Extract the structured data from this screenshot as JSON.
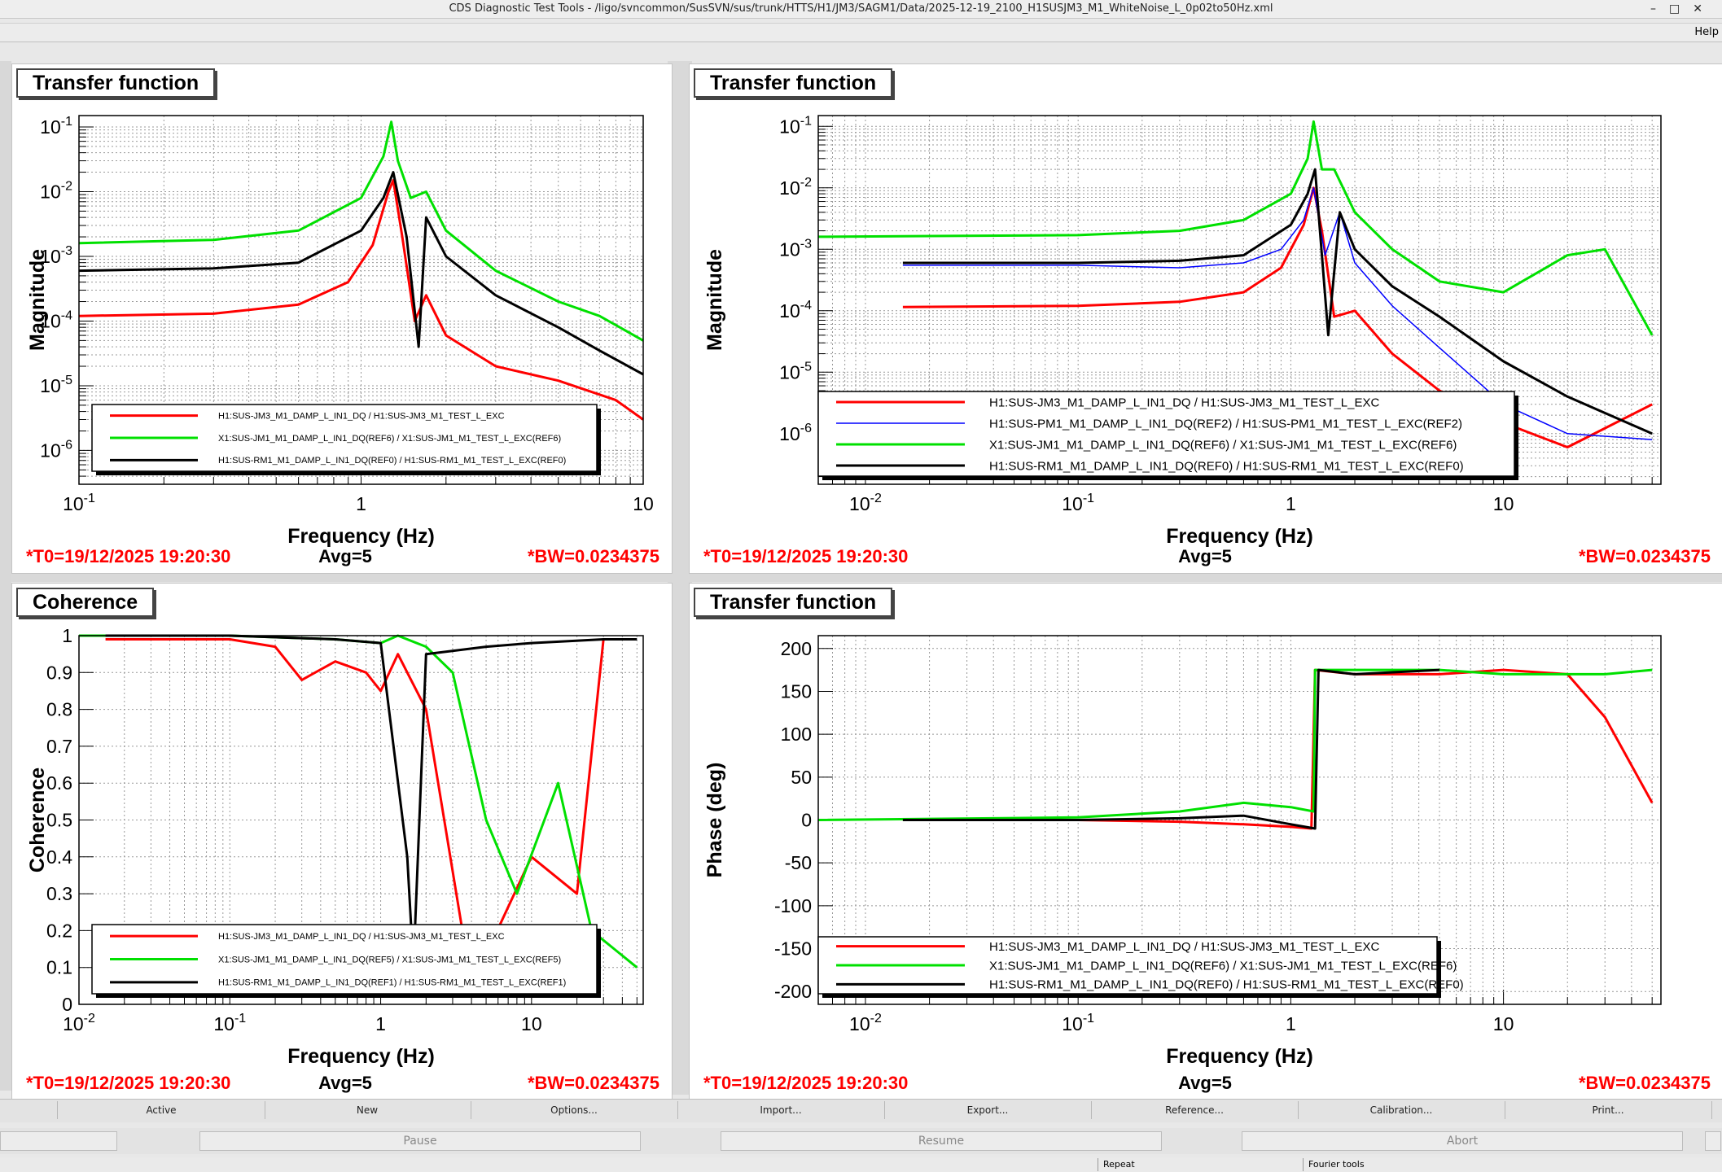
{
  "window": {
    "title": "CDS Diagnostic Test Tools - /ligo/svncommon/SusSVN/sus/trunk/HTTS/H1/JM3/SAGM1/Data/2025-12-19_2100_H1SUSJM3_M1_WhiteNoise_L_0p02to50Hz.xml"
  },
  "menu": {
    "help": "Help"
  },
  "panels": [
    {
      "title": "Transfer function",
      "ylabel": "Magnitude",
      "xlabel": "Frequency (Hz)",
      "t0": "*T0=19/12/2025 19:20:30",
      "avg": "Avg=5",
      "bw": "*BW=0.0234375",
      "xticks": [
        "10",
        "-1",
        "1",
        "10"
      ],
      "yticks": [
        "10",
        "10",
        "10",
        "10",
        "10",
        "10"
      ],
      "legend": [
        {
          "label": "H1:SUS-JM3_M1_DAMP_L_IN1_DQ / H1:SUS-JM3_M1_TEST_L_EXC",
          "color": "#ff0000"
        },
        {
          "label": "X1:SUS-JM1_M1_DAMP_L_IN1_DQ(REF6) / X1:SUS-JM1_M1_TEST_L_EXC(REF6)",
          "color": "#00e000"
        },
        {
          "label": "H1:SUS-RM1_M1_DAMP_L_IN1_DQ(REF0) / H1:SUS-RM1_M1_TEST_L_EXC(REF0)",
          "color": "#000000"
        }
      ]
    },
    {
      "title": "Transfer function",
      "ylabel": "Magnitude",
      "xlabel": "Frequency (Hz)",
      "t0": "*T0=19/12/2025 19:20:30",
      "avg": "Avg=5",
      "bw": "*BW=0.0234375",
      "legend": [
        {
          "label": "H1:SUS-JM3_M1_DAMP_L_IN1_DQ / H1:SUS-JM3_M1_TEST_L_EXC",
          "color": "#ff0000"
        },
        {
          "label": "H1:SUS-PM1_M1_DAMP_L_IN1_DQ(REF2) / H1:SUS-PM1_M1_TEST_L_EXC(REF2)",
          "color": "#0000ff"
        },
        {
          "label": "X1:SUS-JM1_M1_DAMP_L_IN1_DQ(REF6) / X1:SUS-JM1_M1_TEST_L_EXC(REF6)",
          "color": "#00e000"
        },
        {
          "label": "H1:SUS-RM1_M1_DAMP_L_IN1_DQ(REF0) / H1:SUS-RM1_M1_TEST_L_EXC(REF0)",
          "color": "#000000"
        }
      ]
    },
    {
      "title": "Coherence",
      "ylabel": "Coherence",
      "xlabel": "Frequency (Hz)",
      "t0": "*T0=19/12/2025 19:20:30",
      "avg": "Avg=5",
      "bw": "*BW=0.0234375",
      "legend": [
        {
          "label": "H1:SUS-JM3_M1_DAMP_L_IN1_DQ / H1:SUS-JM3_M1_TEST_L_EXC",
          "color": "#ff0000"
        },
        {
          "label": "X1:SUS-JM1_M1_DAMP_L_IN1_DQ(REF5) / X1:SUS-JM1_M1_TEST_L_EXC(REF5)",
          "color": "#00e000"
        },
        {
          "label": "H1:SUS-RM1_M1_DAMP_L_IN1_DQ(REF1) / H1:SUS-RM1_M1_TEST_L_EXC(REF1)",
          "color": "#000000"
        }
      ]
    },
    {
      "title": "Transfer function",
      "ylabel": "Phase (deg)",
      "xlabel": "Frequency (Hz)",
      "t0": "*T0=19/12/2025 19:20:30",
      "avg": "Avg=5",
      "bw": "*BW=0.0234375",
      "legend": [
        {
          "label": "H1:SUS-JM3_M1_DAMP_L_IN1_DQ / H1:SUS-JM3_M1_TEST_L_EXC",
          "color": "#ff0000"
        },
        {
          "label": "X1:SUS-JM1_M1_DAMP_L_IN1_DQ(REF6) / X1:SUS-JM1_M1_TEST_L_EXC(REF6)",
          "color": "#00e000"
        },
        {
          "label": "H1:SUS-RM1_M1_DAMP_L_IN1_DQ(REF0) / H1:SUS-RM1_M1_TEST_L_EXC(REF0)",
          "color": "#000000"
        }
      ]
    }
  ],
  "chart_data": [
    {
      "type": "line",
      "title": "Transfer function",
      "xlabel": "Frequency (Hz)",
      "ylabel": "Magnitude",
      "xscale": "log",
      "yscale": "log",
      "xlim": [
        0.1,
        10
      ],
      "ylim": [
        3e-07,
        0.15
      ],
      "xticks": [
        0.1,
        1,
        10
      ],
      "yticks": [
        1e-06,
        1e-05,
        0.0001,
        0.001,
        0.01,
        0.1
      ],
      "grid": true,
      "legend": "bottom-left",
      "series": [
        {
          "name": "H1:SUS-JM3_M1_DAMP_L_IN1_DQ / H1:SUS-JM3_M1_TEST_L_EXC",
          "color": "#ff0000",
          "x": [
            0.1,
            0.3,
            0.6,
            0.9,
            1.1,
            1.25,
            1.3,
            1.4,
            1.55,
            1.7,
            2.0,
            3.0,
            5.0,
            8.0,
            10.0
          ],
          "y": [
            0.00012,
            0.00013,
            0.00018,
            0.0004,
            0.0015,
            0.01,
            0.015,
            0.002,
            0.0001,
            0.00025,
            6e-05,
            2e-05,
            1.2e-05,
            6e-06,
            3e-06
          ]
        },
        {
          "name": "X1:SUS-JM1_M1_DAMP_L_IN1_DQ(REF6) / X1:SUS-JM1_M1_TEST_L_EXC(REF6)",
          "color": "#00e000",
          "x": [
            0.1,
            0.3,
            0.6,
            1.0,
            1.2,
            1.28,
            1.35,
            1.5,
            1.7,
            2.0,
            3.0,
            5.0,
            7.0,
            10.0
          ],
          "y": [
            0.0016,
            0.0018,
            0.0025,
            0.008,
            0.035,
            0.12,
            0.03,
            0.008,
            0.01,
            0.0025,
            0.0006,
            0.0002,
            0.00012,
            5e-05
          ]
        },
        {
          "name": "H1:SUS-RM1_M1_DAMP_L_IN1_DQ(REF0) / H1:SUS-RM1_M1_TEST_L_EXC(REF0)",
          "color": "#000000",
          "x": [
            0.1,
            0.3,
            0.6,
            1.0,
            1.2,
            1.3,
            1.45,
            1.6,
            1.7,
            2.0,
            3.0,
            5.0,
            7.0,
            10.0
          ],
          "y": [
            0.0006,
            0.00065,
            0.0008,
            0.0025,
            0.008,
            0.02,
            0.002,
            4e-05,
            0.004,
            0.001,
            0.00025,
            8e-05,
            3.5e-05,
            1.5e-05
          ]
        }
      ]
    },
    {
      "type": "line",
      "title": "Transfer function",
      "xlabel": "Frequency (Hz)",
      "ylabel": "Magnitude",
      "xscale": "log",
      "yscale": "log",
      "xlim": [
        0.006,
        55
      ],
      "ylim": [
        1.5e-07,
        0.15
      ],
      "xticks": [
        0.01,
        0.1,
        1,
        10
      ],
      "yticks": [
        1e-06,
        1e-05,
        0.0001,
        0.001,
        0.01,
        0.1
      ],
      "grid": true,
      "legend": "bottom-center",
      "series": [
        {
          "name": "H1:SUS-JM3_M1_DAMP_L_IN1_DQ / H1:SUS-JM3_M1_TEST_L_EXC",
          "color": "#ff0000",
          "x": [
            0.015,
            0.1,
            0.3,
            0.6,
            0.9,
            1.15,
            1.28,
            1.4,
            1.6,
            2.0,
            3.0,
            5.0,
            10.0,
            20.0,
            50.0
          ],
          "y": [
            0.000115,
            0.00012,
            0.00014,
            0.0002,
            0.0005,
            0.0025,
            0.01,
            0.002,
            8e-05,
            0.0001,
            2e-05,
            5e-06,
            1.5e-06,
            6e-07,
            3e-06
          ]
        },
        {
          "name": "H1:SUS-PM1_M1_DAMP_L_IN1_DQ(REF2) / H1:SUS-PM1_M1_TEST_L_EXC(REF2)",
          "color": "#0000ff",
          "x": [
            0.015,
            0.1,
            0.3,
            0.6,
            0.9,
            1.15,
            1.28,
            1.45,
            1.7,
            2.0,
            3.0,
            5.0,
            10.0,
            20.0,
            50.0
          ],
          "y": [
            0.00055,
            0.00055,
            0.0005,
            0.0006,
            0.001,
            0.003,
            0.01,
            0.0008,
            0.004,
            0.0006,
            0.00012,
            2.5e-05,
            3e-06,
            1e-06,
            8e-07
          ]
        },
        {
          "name": "X1:SUS-JM1_M1_DAMP_L_IN1_DQ(REF6) / X1:SUS-JM1_M1_TEST_L_EXC(REF6)",
          "color": "#00e000",
          "x": [
            0.006,
            0.1,
            0.3,
            0.6,
            1.0,
            1.2,
            1.28,
            1.4,
            1.6,
            2.0,
            3.0,
            5.0,
            10.0,
            20.0,
            30.0,
            50.0
          ],
          "y": [
            0.0016,
            0.0017,
            0.002,
            0.003,
            0.008,
            0.03,
            0.12,
            0.02,
            0.02,
            0.004,
            0.001,
            0.0003,
            0.0002,
            0.0008,
            0.001,
            4e-05
          ]
        },
        {
          "name": "H1:SUS-RM1_M1_DAMP_L_IN1_DQ(REF0) / H1:SUS-RM1_M1_TEST_L_EXC(REF0)",
          "color": "#000000",
          "x": [
            0.015,
            0.1,
            0.3,
            0.6,
            1.0,
            1.2,
            1.3,
            1.5,
            1.7,
            2.0,
            3.0,
            5.0,
            10.0,
            20.0,
            50.0
          ],
          "y": [
            0.0006,
            0.0006,
            0.00065,
            0.0008,
            0.0025,
            0.008,
            0.02,
            4e-05,
            0.004,
            0.001,
            0.00025,
            8e-05,
            1.5e-05,
            4e-06,
            1e-06
          ]
        }
      ]
    },
    {
      "type": "line",
      "title": "Coherence",
      "xlabel": "Frequency (Hz)",
      "ylabel": "Coherence",
      "xscale": "log",
      "yscale": "linear",
      "xlim": [
        0.01,
        55
      ],
      "ylim": [
        0,
        1
      ],
      "xticks": [
        0.01,
        0.1,
        1,
        10
      ],
      "yticks": [
        0,
        0.1,
        0.2,
        0.3,
        0.4,
        0.5,
        0.6,
        0.7,
        0.8,
        0.9,
        1
      ],
      "grid": true,
      "legend": "bottom-left",
      "series": [
        {
          "name": "H1:SUS-JM3_M1_DAMP_L_IN1_DQ / H1:SUS-JM3_M1_TEST_L_EXC",
          "color": "#ff0000",
          "x": [
            0.015,
            0.1,
            0.2,
            0.3,
            0.5,
            0.8,
            1.0,
            1.3,
            2.0,
            4.0,
            10.0,
            20.0,
            30.0
          ],
          "y": [
            0.99,
            0.99,
            0.97,
            0.88,
            0.93,
            0.9,
            0.85,
            0.95,
            0.8,
            0.05,
            0.4,
            0.3,
            0.99
          ]
        },
        {
          "name": "X1:SUS-JM1_M1_DAMP_L_IN1_DQ(REF5) / X1:SUS-JM1_M1_TEST_L_EXC(REF5)",
          "color": "#00e000",
          "x": [
            0.01,
            0.1,
            0.5,
            1.0,
            1.3,
            2.0,
            3.0,
            5.0,
            8.0,
            15.0,
            25.0,
            50.0
          ],
          "y": [
            1.0,
            1.0,
            0.99,
            0.98,
            1.0,
            0.97,
            0.9,
            0.5,
            0.3,
            0.6,
            0.2,
            0.1
          ]
        },
        {
          "name": "H1:SUS-RM1_M1_DAMP_L_IN1_DQ(REF1) / H1:SUS-RM1_M1_TEST_L_EXC(REF1)",
          "color": "#000000",
          "x": [
            0.015,
            0.1,
            0.5,
            1.0,
            1.5,
            1.65,
            2.0,
            5.0,
            10.0,
            30.0,
            50.0
          ],
          "y": [
            1.0,
            1.0,
            0.99,
            0.98,
            0.4,
            0.1,
            0.95,
            0.97,
            0.98,
            0.99,
            0.99
          ]
        }
      ]
    },
    {
      "type": "line",
      "title": "Transfer function",
      "xlabel": "Frequency (Hz)",
      "ylabel": "Phase (deg)",
      "xscale": "log",
      "yscale": "linear",
      "xlim": [
        0.006,
        55
      ],
      "ylim": [
        -215,
        215
      ],
      "xticks": [
        0.01,
        0.1,
        1,
        10
      ],
      "yticks": [
        -200,
        -150,
        -100,
        -50,
        0,
        50,
        100,
        150,
        200
      ],
      "grid": true,
      "legend": "bottom-center",
      "series": [
        {
          "name": "H1:SUS-JM3_M1_DAMP_L_IN1_DQ / H1:SUS-JM3_M1_TEST_L_EXC",
          "color": "#ff0000",
          "x": [
            0.015,
            0.1,
            0.3,
            0.6,
            1.0,
            1.25,
            1.3,
            2.0,
            5.0,
            10.0,
            20.0,
            30.0,
            50.0
          ],
          "y": [
            0,
            0,
            -2,
            -5,
            -8,
            -10,
            175,
            170,
            170,
            175,
            170,
            120,
            20
          ]
        },
        {
          "name": "X1:SUS-JM1_M1_DAMP_L_IN1_DQ(REF6) / X1:SUS-JM1_M1_TEST_L_EXC(REF6)",
          "color": "#00e000",
          "x": [
            0.006,
            0.1,
            0.3,
            0.6,
            1.0,
            1.28,
            1.3,
            2.0,
            5.0,
            10.0,
            30.0,
            50.0
          ],
          "y": [
            0,
            3,
            10,
            20,
            15,
            10,
            175,
            175,
            175,
            170,
            170,
            175
          ]
        },
        {
          "name": "H1:SUS-RM1_M1_DAMP_L_IN1_DQ(REF0) / H1:SUS-RM1_M1_TEST_L_EXC(REF0)",
          "color": "#000000",
          "x": [
            0.015,
            0.1,
            0.3,
            0.6,
            1.0,
            1.3,
            1.35,
            2.0,
            5.0
          ],
          "y": [
            0,
            0,
            2,
            5,
            -5,
            -10,
            175,
            170,
            175
          ]
        }
      ]
    }
  ],
  "toolbar": [
    "Active",
    "New",
    "Options...",
    "Import...",
    "Export...",
    "Reference...",
    "Calibration...",
    "Print..."
  ],
  "controls": [
    "Pause",
    "Resume",
    "Abort"
  ],
  "status": {
    "repeat": "Repeat",
    "fourier": "Fourier tools"
  }
}
